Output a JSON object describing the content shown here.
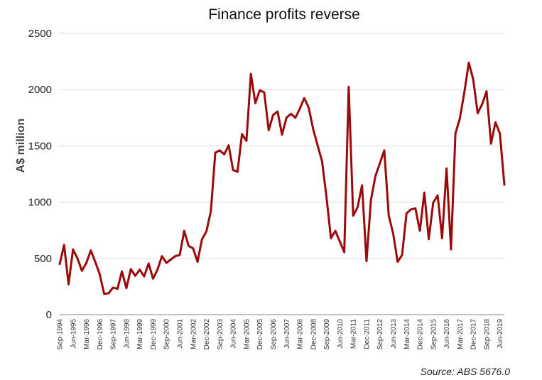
{
  "chart_data": {
    "type": "line",
    "title": "Finance profits reverse",
    "ylabel": "A$ million",
    "xlabel": "",
    "source": "Source:  ABS 5676.0",
    "ylim": [
      0,
      2500
    ],
    "yticks": [
      0,
      500,
      1000,
      1500,
      2000,
      2500
    ],
    "grid": true,
    "xtick_labels": [
      "Sep-1994",
      "Jun-1995",
      "Mar-1996",
      "Dec-1996",
      "Sep-1997",
      "Jun-1998",
      "Mar-1999",
      "Dec-1999",
      "Sep-2000",
      "Jun-2001",
      "Mar-2002",
      "Dec-2002",
      "Sep-2003",
      "Jun-2004",
      "Mar-2005",
      "Dec-2005",
      "Sep-2006",
      "Jun-2007",
      "Mar-2008",
      "Dec-2008",
      "Sep-2009",
      "Jun-2010",
      "Mar-2011",
      "Dec-2011",
      "Sep-2012",
      "Jun-2013",
      "Mar-2014",
      "Dec-2014",
      "Sep-2015",
      "Jun-2016",
      "Mar-2017",
      "Dec-2017",
      "Sep-2018",
      "Jun-2019"
    ],
    "series": [
      {
        "color": "#9b0a0a",
        "values": [
          450,
          620,
          270,
          580,
          500,
          390,
          460,
          570,
          470,
          360,
          185,
          190,
          240,
          230,
          385,
          235,
          405,
          345,
          400,
          340,
          455,
          320,
          400,
          520,
          460,
          490,
          520,
          530,
          745,
          610,
          590,
          470,
          670,
          740,
          920,
          1440,
          1460,
          1425,
          1505,
          1285,
          1270,
          1605,
          1545,
          2140,
          1880,
          1995,
          1975,
          1640,
          1775,
          1805,
          1600,
          1750,
          1785,
          1750,
          1830,
          1925,
          1840,
          1650,
          1505,
          1365,
          1045,
          680,
          745,
          650,
          555,
          2025,
          880,
          955,
          1150,
          475,
          1020,
          1230,
          1345,
          1460,
          880,
          720,
          470,
          530,
          900,
          935,
          945,
          745,
          1085,
          670,
          995,
          1060,
          680,
          1300,
          580,
          1610,
          1745,
          1975,
          2240,
          2090,
          1790,
          1870,
          1985,
          1520,
          1710,
          1610,
          1155
        ]
      }
    ]
  }
}
